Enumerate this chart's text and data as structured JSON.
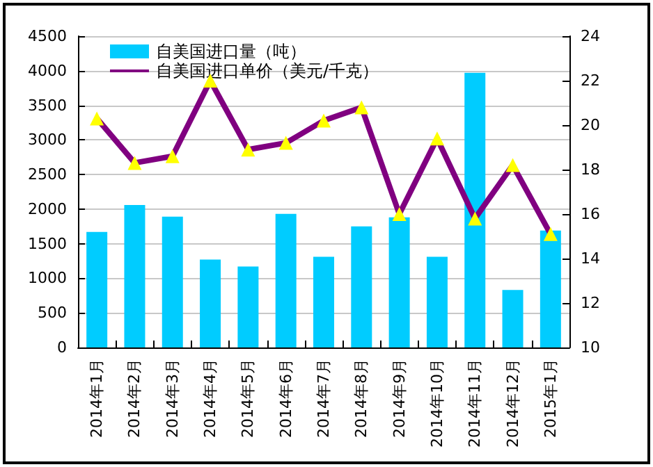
{
  "chart_data": {
    "type": "bar",
    "categories": [
      "2014年1月",
      "2014年2月",
      "2014年3月",
      "2014年4月",
      "2014年5月",
      "2014年6月",
      "2014年7月",
      "2014年8月",
      "2014年9月",
      "2014年10月",
      "2014年11月",
      "2014年12月",
      "2015年1月"
    ],
    "series": [
      {
        "name": "自美国进口量（吨）",
        "color": "#00ccff",
        "values": [
          1670,
          2060,
          1890,
          1270,
          1170,
          1930,
          1310,
          1750,
          1880,
          1310,
          3970,
          830,
          1690
        ]
      },
      {
        "name": "自美国进口单价（美元/千克）",
        "type": "line",
        "axis": "y2",
        "color": "#800080",
        "marker": "triangle",
        "values": [
          20.3,
          18.3,
          18.6,
          22.0,
          18.9,
          19.2,
          20.2,
          20.8,
          16.0,
          19.4,
          15.8,
          18.2,
          15.1
        ]
      }
    ],
    "ylim": [
      0,
      4500
    ],
    "yticks": [
      0,
      500,
      1000,
      1500,
      2000,
      2500,
      3000,
      3500,
      4000,
      4500
    ],
    "y2lim": [
      10,
      24
    ],
    "y2ticks": [
      10,
      12,
      14,
      16,
      18,
      20,
      22,
      24
    ],
    "grid": "y",
    "legend": "top left"
  }
}
